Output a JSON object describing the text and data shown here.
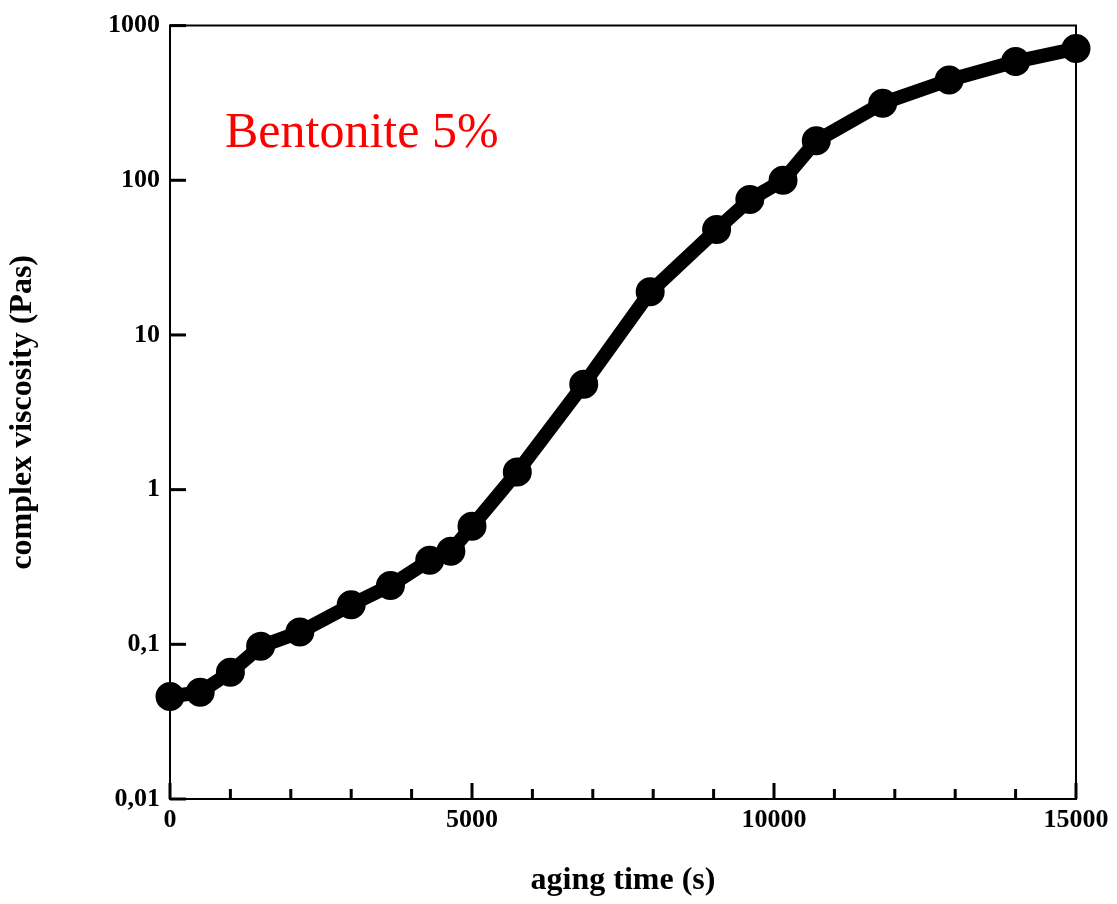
{
  "chart_data": {
    "type": "line",
    "xlabel": "aging time (s)",
    "ylabel": "complex viscosity (Pas)",
    "annotations": [
      "Bentonite 5%"
    ],
    "x": [
      0,
      500,
      1000,
      1500,
      2150,
      3000,
      3650,
      4300,
      4650,
      5000,
      5750,
      6850,
      7950,
      9050,
      9600,
      10150,
      10700,
      11800,
      12900,
      14000,
      15000
    ],
    "series": [
      {
        "color": "#000000",
        "values": [
          0.046,
          0.049,
          0.066,
          0.097,
          0.12,
          0.18,
          0.24,
          0.35,
          0.4,
          0.58,
          1.3,
          4.8,
          19,
          48,
          75,
          100,
          180,
          315,
          445,
          585,
          710
        ]
      }
    ],
    "xlim": [
      0,
      15000
    ],
    "ylim": [
      0.01,
      1000
    ],
    "xticks": [
      0,
      {
        "value": 1000,
        "label": null
      },
      {
        "value": 2000,
        "label": null
      },
      {
        "value": 3000,
        "label": null
      },
      {
        "value": 4000,
        "label": null
      },
      5000,
      {
        "value": 6000,
        "label": null
      },
      {
        "value": 7000,
        "label": null
      },
      {
        "value": 8000,
        "label": null
      },
      {
        "value": 9000,
        "label": null
      },
      10000,
      {
        "value": 11000,
        "label": null
      },
      {
        "value": 12000,
        "label": null
      },
      {
        "value": 13000,
        "label": null
      },
      {
        "value": 14000,
        "label": null
      },
      15000
    ],
    "yticks": [
      {
        "value": 0.01,
        "label": "0,01"
      },
      {
        "value": 0.1,
        "label": "0,1"
      },
      1,
      10,
      100,
      1000
    ],
    "log": true,
    "grid": false,
    "marker": "circle"
  }
}
